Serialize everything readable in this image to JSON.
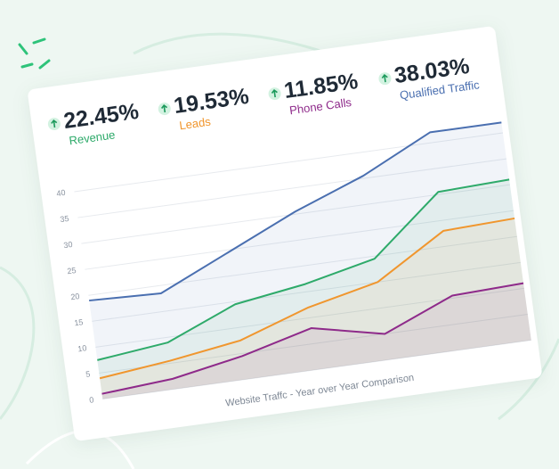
{
  "stats": [
    {
      "value": "22.45%",
      "label": "Revenue",
      "color": "#2eaa6a"
    },
    {
      "value": "19.53%",
      "label": "Leads",
      "color": "#f0962e"
    },
    {
      "value": "11.85%",
      "label": "Phone Calls",
      "color": "#8e2a8a"
    },
    {
      "value": "38.03%",
      "label": "Qualified Traffic",
      "color": "#4a6fb0"
    }
  ],
  "chart_data": {
    "type": "area",
    "caption": "Website Traffc - Year over Year Comparison",
    "categories": [
      null,
      null,
      null,
      null,
      null,
      null,
      null
    ],
    "series": [
      {
        "color": "#4a6fb0",
        "values": [
          19,
          18.5,
          24.5,
          30.5,
          35.5,
          42,
          42
        ]
      },
      {
        "color": "#2eaa6a",
        "values": [
          7.5,
          9,
          14.5,
          16.5,
          19.5,
          30.5,
          31
        ]
      },
      {
        "color": "#f0962e",
        "values": [
          4,
          5.5,
          7.5,
          12,
          15,
          23,
          23.5
        ]
      },
      {
        "color": "#8e2a8a",
        "values": [
          1,
          2,
          4.5,
          8,
          5,
          10.5,
          11
        ]
      }
    ],
    "ylim": [
      0,
      45
    ],
    "yticks": [
      0,
      5,
      10,
      15,
      20,
      25,
      30,
      35,
      40
    ],
    "grid": true
  }
}
